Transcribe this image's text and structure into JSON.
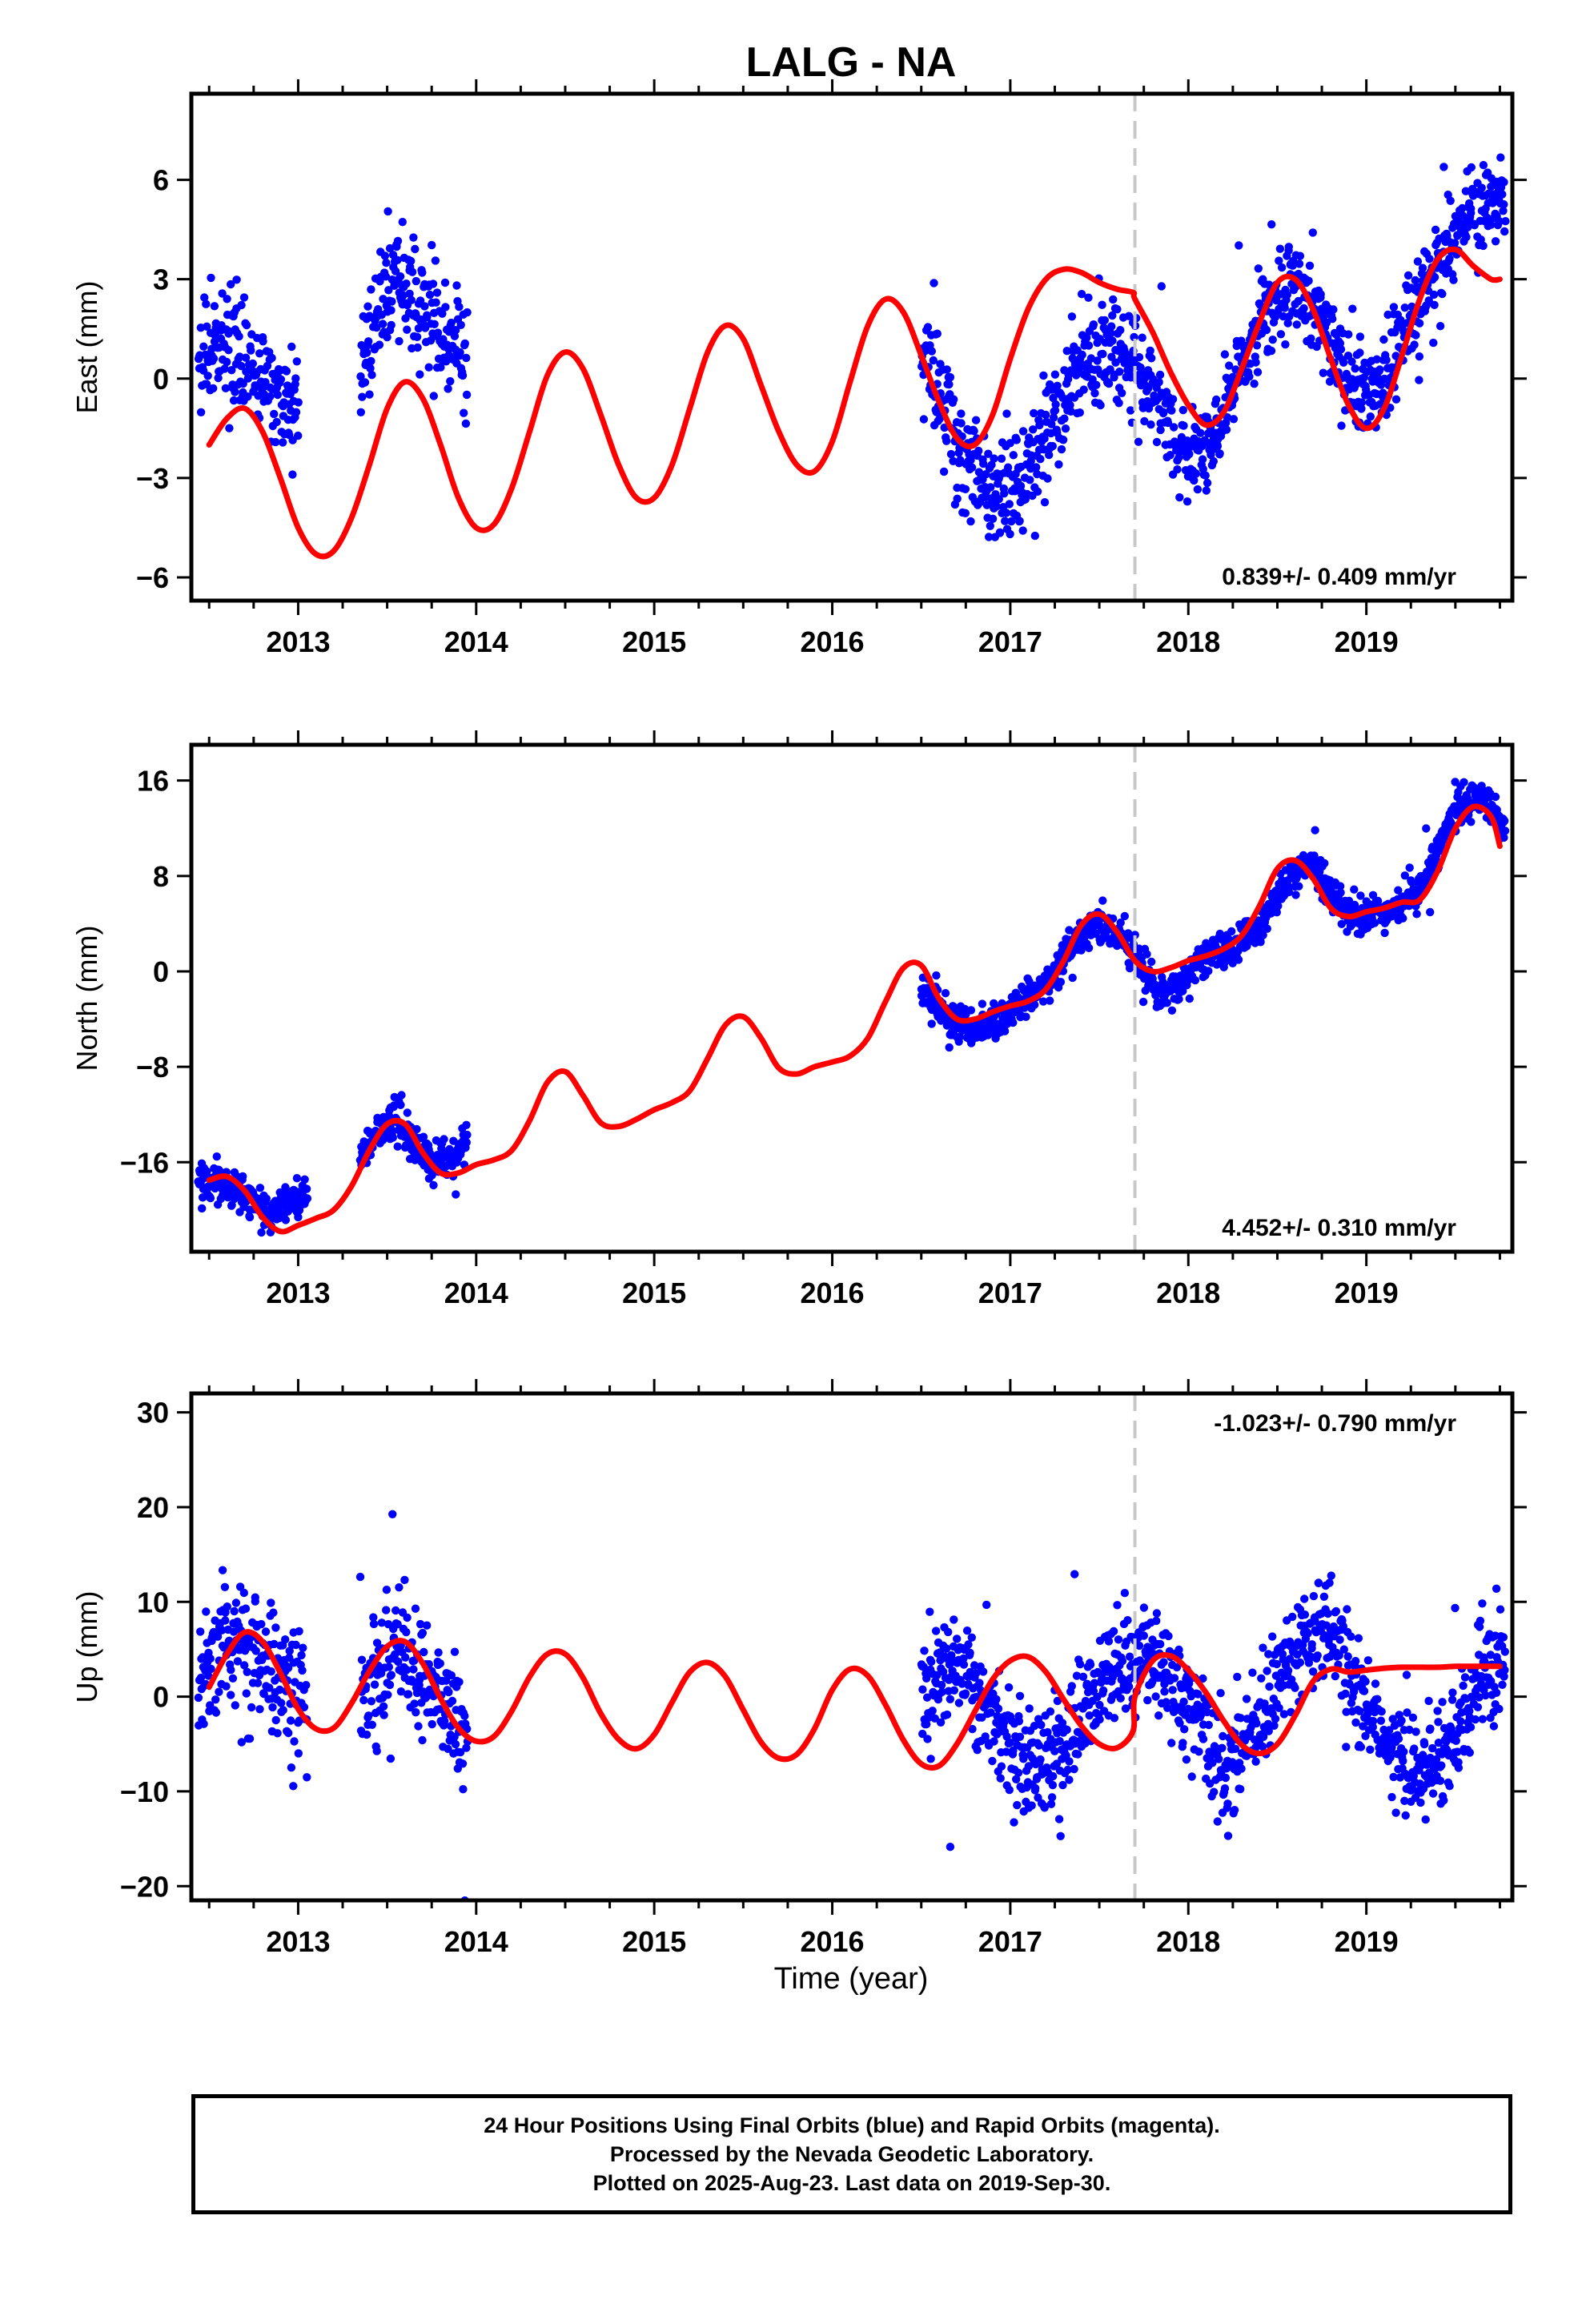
{
  "title": "LALG - NA",
  "xlabel": "Time (year)",
  "colors": {
    "points": "#0000ff",
    "fit": "#ff0000",
    "offset_line": "#c8c8c8",
    "frame": "#000000"
  },
  "caption": {
    "line1": "24 Hour Positions Using Final Orbits (blue) and Rapid Orbits (magenta).",
    "line2": "Processed by the Nevada Geodetic Laboratory.",
    "line3": "Plotted on 2025-Aug-23. Last data on 2019-Sep-30."
  },
  "chart_data": [
    {
      "type": "scatter",
      "ylabel": "East (mm)",
      "rate_label": "0.839+/- 0.409 mm/yr",
      "rate_label_position": "bottom-right",
      "xlim": [
        2012.4,
        2019.82
      ],
      "ylim": [
        -6.7,
        8.6
      ],
      "x_ticks": [
        2013,
        2014,
        2015,
        2016,
        2017,
        2018,
        2019
      ],
      "y_ticks": [
        6,
        3,
        0,
        -3,
        -6
      ],
      "y_tick_labels": [
        "6",
        "3",
        "0",
        "−3",
        "−6"
      ],
      "offset_epoch": 2017.7,
      "fit_line": {
        "x": [
          2012.5,
          2012.6,
          2012.7,
          2012.8,
          2012.9,
          2013.0,
          2013.1,
          2013.2,
          2013.3,
          2013.4,
          2013.5,
          2013.6,
          2013.7,
          2013.8,
          2013.9,
          2014.0,
          2014.1,
          2014.2,
          2014.3,
          2014.4,
          2014.5,
          2014.6,
          2014.7,
          2014.8,
          2014.9,
          2015.0,
          2015.1,
          2015.2,
          2015.3,
          2015.4,
          2015.5,
          2015.6,
          2015.7,
          2015.8,
          2015.9,
          2016.0,
          2016.1,
          2016.2,
          2016.3,
          2016.4,
          2016.5,
          2016.6,
          2016.7,
          2016.8,
          2016.9,
          2017.0,
          2017.1,
          2017.2,
          2017.3,
          2017.4,
          2017.5,
          2017.6,
          2017.69,
          2017.7,
          2017.8,
          2017.9,
          2018.0,
          2018.1,
          2018.2,
          2018.3,
          2018.4,
          2018.5,
          2018.6,
          2018.7,
          2018.8,
          2018.9,
          2019.0,
          2019.1,
          2019.2,
          2019.3,
          2019.4,
          2019.5,
          2019.6,
          2019.7,
          2019.75
        ],
        "y": [
          -2.0,
          -1.2,
          -0.9,
          -1.6,
          -3.0,
          -4.5,
          -5.3,
          -5.2,
          -4.2,
          -2.6,
          -0.9,
          -0.1,
          -0.6,
          -2.0,
          -3.6,
          -4.5,
          -4.4,
          -3.3,
          -1.6,
          0.1,
          0.8,
          0.3,
          -1.1,
          -2.6,
          -3.6,
          -3.6,
          -2.6,
          -0.9,
          0.8,
          1.6,
          1.2,
          -0.2,
          -1.6,
          -2.6,
          -2.8,
          -1.9,
          -0.1,
          1.6,
          2.4,
          2.0,
          0.7,
          -0.7,
          -1.8,
          -2.0,
          -1.1,
          0.6,
          2.1,
          3.0,
          3.3,
          3.2,
          2.9,
          2.7,
          2.6,
          2.4,
          1.4,
          0.2,
          -0.8,
          -1.4,
          -1.0,
          0.3,
          1.7,
          2.9,
          3.0,
          2.1,
          0.6,
          -0.8,
          -1.5,
          -0.9,
          0.7,
          2.4,
          3.6,
          3.9,
          3.4,
          3.0,
          3.0
        ]
      },
      "segments": [
        {
          "x_start": 2012.44,
          "x_end": 2013.0,
          "base": [
            0.6,
            1.0,
            0.5,
            0.0,
            -0.5,
            -1.0
          ],
          "spread": 1.2
        },
        {
          "x_start": 2013.35,
          "x_end": 2013.95,
          "base": [
            0.5,
            2.0,
            3.0,
            2.5,
            1.8,
            1.0,
            0.6
          ],
          "spread": 1.3
        },
        {
          "x_start": 2016.5,
          "x_end": 2017.7,
          "base": [
            1.0,
            -1.0,
            -2.5,
            -3.5,
            -3.2,
            -2.0,
            -0.5,
            0.8,
            1.0,
            0.5
          ],
          "spread": 1.4
        },
        {
          "x_start": 2017.7,
          "x_end": 2019.78,
          "base": [
            0.3,
            -0.5,
            -2.5,
            -2.0,
            0.0,
            1.5,
            2.8,
            2.5,
            1.0,
            -0.5,
            0.0,
            1.5,
            3.0,
            4.5,
            5.0,
            5.5
          ],
          "spread": 1.1
        }
      ]
    },
    {
      "type": "scatter",
      "ylabel": "North (mm)",
      "rate_label": "4.452+/- 0.310 mm/yr",
      "rate_label_position": "bottom-right",
      "xlim": [
        2012.4,
        2019.82
      ],
      "ylim": [
        -23.5,
        19
      ],
      "x_ticks": [
        2013,
        2014,
        2015,
        2016,
        2017,
        2018,
        2019
      ],
      "y_ticks": [
        16,
        8,
        0,
        -8,
        -16
      ],
      "y_tick_labels": [
        "16",
        "8",
        "0",
        "−8",
        "−16"
      ],
      "offset_epoch": 2017.7,
      "fit_line": {
        "x": [
          2012.5,
          2012.6,
          2012.7,
          2012.8,
          2012.9,
          2013.0,
          2013.1,
          2013.2,
          2013.3,
          2013.4,
          2013.5,
          2013.6,
          2013.7,
          2013.8,
          2013.9,
          2014.0,
          2014.1,
          2014.2,
          2014.3,
          2014.4,
          2014.5,
          2014.6,
          2014.7,
          2014.8,
          2014.9,
          2015.0,
          2015.1,
          2015.2,
          2015.3,
          2015.4,
          2015.5,
          2015.6,
          2015.7,
          2015.8,
          2015.9,
          2016.0,
          2016.1,
          2016.2,
          2016.3,
          2016.4,
          2016.5,
          2016.6,
          2016.7,
          2016.8,
          2016.9,
          2017.0,
          2017.1,
          2017.2,
          2017.3,
          2017.4,
          2017.5,
          2017.6,
          2017.7,
          2017.8,
          2017.9,
          2018.0,
          2018.1,
          2018.2,
          2018.3,
          2018.4,
          2018.5,
          2018.6,
          2018.7,
          2018.8,
          2018.9,
          2019.0,
          2019.1,
          2019.2,
          2019.3,
          2019.4,
          2019.5,
          2019.6,
          2019.7,
          2019.75
        ],
        "y": [
          -17.5,
          -17.2,
          -18.4,
          -20.6,
          -21.8,
          -21.3,
          -20.7,
          -20.0,
          -18.0,
          -15.0,
          -12.8,
          -12.8,
          -15.2,
          -16.9,
          -16.9,
          -16.2,
          -15.8,
          -15.0,
          -12.5,
          -9.3,
          -8.4,
          -10.4,
          -12.7,
          -13.0,
          -12.4,
          -11.6,
          -11.0,
          -10.0,
          -7.3,
          -4.5,
          -3.8,
          -5.6,
          -8.1,
          -8.6,
          -8.0,
          -7.6,
          -7.1,
          -5.6,
          -2.5,
          0.3,
          0.5,
          -2.3,
          -4.0,
          -4.0,
          -3.4,
          -2.9,
          -2.5,
          -1.5,
          0.9,
          3.9,
          4.8,
          3.3,
          0.9,
          0.0,
          0.3,
          0.9,
          1.3,
          1.9,
          3.0,
          5.5,
          8.6,
          9.3,
          7.8,
          5.3,
          4.6,
          5.0,
          5.3,
          5.8,
          6.0,
          8.4,
          12.0,
          13.8,
          13.0,
          10.5
        ]
      },
      "segments": [
        {
          "x_start": 2012.44,
          "x_end": 2013.05,
          "base": [
            -17.5,
            -17.5,
            -18.5,
            -20.0,
            -19.5,
            -19.0
          ],
          "spread": 1.3
        },
        {
          "x_start": 2013.35,
          "x_end": 2013.95,
          "base": [
            -15.5,
            -13.5,
            -12.5,
            -14.0,
            -16.0,
            -15.5,
            -14.5
          ],
          "spread": 1.4
        },
        {
          "x_start": 2016.5,
          "x_end": 2017.7,
          "base": [
            -1.5,
            -3.5,
            -5.0,
            -4.5,
            -3.5,
            -2.5,
            -1.0,
            2.0,
            4.0,
            3.5,
            1.5
          ],
          "spread": 1.2
        },
        {
          "x_start": 2017.7,
          "x_end": 2019.78,
          "base": [
            1.0,
            -1.5,
            -1.5,
            1.0,
            1.5,
            2.5,
            4.5,
            8.0,
            9.0,
            6.5,
            4.5,
            5.0,
            5.5,
            6.5,
            10.5,
            14.5,
            14.5,
            12.0
          ],
          "spread": 1.2
        }
      ]
    },
    {
      "type": "scatter",
      "ylabel": "Up (mm)",
      "rate_label": "-1.023+/- 0.790 mm/yr",
      "rate_label_position": "top-right",
      "xlim": [
        2012.4,
        2019.82
      ],
      "ylim": [
        -21.5,
        32
      ],
      "x_ticks": [
        2013,
        2014,
        2015,
        2016,
        2017,
        2018,
        2019
      ],
      "y_ticks": [
        30,
        20,
        10,
        0,
        -10,
        -20
      ],
      "y_tick_labels": [
        "30",
        "20",
        "10",
        "0",
        "−10",
        "−20"
      ],
      "offset_epoch": 2017.7,
      "fit_line": {
        "x": [
          2012.5,
          2012.6,
          2012.7,
          2012.8,
          2012.9,
          2013.0,
          2013.1,
          2013.2,
          2013.3,
          2013.4,
          2013.5,
          2013.6,
          2013.7,
          2013.8,
          2013.9,
          2014.0,
          2014.1,
          2014.2,
          2014.3,
          2014.4,
          2014.5,
          2014.6,
          2014.7,
          2014.8,
          2014.9,
          2015.0,
          2015.1,
          2015.2,
          2015.3,
          2015.4,
          2015.5,
          2015.6,
          2015.7,
          2015.8,
          2015.9,
          2016.0,
          2016.1,
          2016.2,
          2016.3,
          2016.4,
          2016.5,
          2016.6,
          2016.7,
          2016.8,
          2016.9,
          2017.0,
          2017.1,
          2017.2,
          2017.3,
          2017.4,
          2017.5,
          2017.6,
          2017.69,
          2017.7,
          2017.8,
          2017.9,
          2018.0,
          2018.1,
          2018.2,
          2018.3,
          2018.4,
          2018.5,
          2018.6,
          2018.7,
          2018.8,
          2018.9,
          2019.0,
          2019.1,
          2019.2,
          2019.3,
          2019.4,
          2019.5,
          2019.6,
          2019.7,
          2019.75
        ],
        "y": [
          1.0,
          4.5,
          6.8,
          5.8,
          2.5,
          -1.3,
          -3.4,
          -3.3,
          -0.7,
          2.7,
          5.3,
          5.8,
          3.5,
          -0.2,
          -3.3,
          -4.7,
          -4.2,
          -1.5,
          2.1,
          4.5,
          4.5,
          2.0,
          -1.8,
          -4.5,
          -5.5,
          -4.0,
          -0.6,
          2.6,
          3.6,
          2.1,
          -1.4,
          -4.8,
          -6.5,
          -6.1,
          -3.4,
          0.7,
          2.9,
          2.2,
          -0.9,
          -4.6,
          -7.1,
          -7.3,
          -5.0,
          -1.6,
          1.8,
          3.8,
          4.2,
          2.6,
          -0.3,
          -3.1,
          -5.0,
          -5.4,
          -3.6,
          0.0,
          3.8,
          4.3,
          2.8,
          0.4,
          -2.6,
          -5.1,
          -6.0,
          -5.0,
          -2.0,
          1.6,
          2.9,
          2.6,
          2.8,
          3.0,
          3.1,
          3.1,
          3.1,
          3.2,
          3.2,
          3.2,
          3.2
        ]
      },
      "segments": [
        {
          "x_start": 2012.44,
          "x_end": 2013.05,
          "base": [
            2.0,
            5.0,
            6.0,
            4.0,
            1.5,
            0.0
          ],
          "spread": 5.5
        },
        {
          "x_start": 2013.35,
          "x_end": 2013.95,
          "base": [
            0.0,
            3.0,
            5.0,
            4.0,
            1.0,
            -2.0,
            -4.0
          ],
          "spread": 5.0
        },
        {
          "x_start": 2016.5,
          "x_end": 2017.7,
          "base": [
            0.0,
            3.0,
            2.0,
            -2.0,
            -6.0,
            -8.0,
            -5.0,
            -1.0,
            3.0,
            4.0
          ],
          "spread": 4.5
        },
        {
          "x_start": 2017.7,
          "x_end": 2019.78,
          "base": [
            5.0,
            4.0,
            0.0,
            -4.0,
            -7.0,
            -5.0,
            0.0,
            5.0,
            8.0,
            4.0,
            -2.0,
            -5.0,
            -8.0,
            -7.0,
            -4.0,
            2.0,
            4.0
          ],
          "spread": 4.5
        }
      ]
    }
  ]
}
